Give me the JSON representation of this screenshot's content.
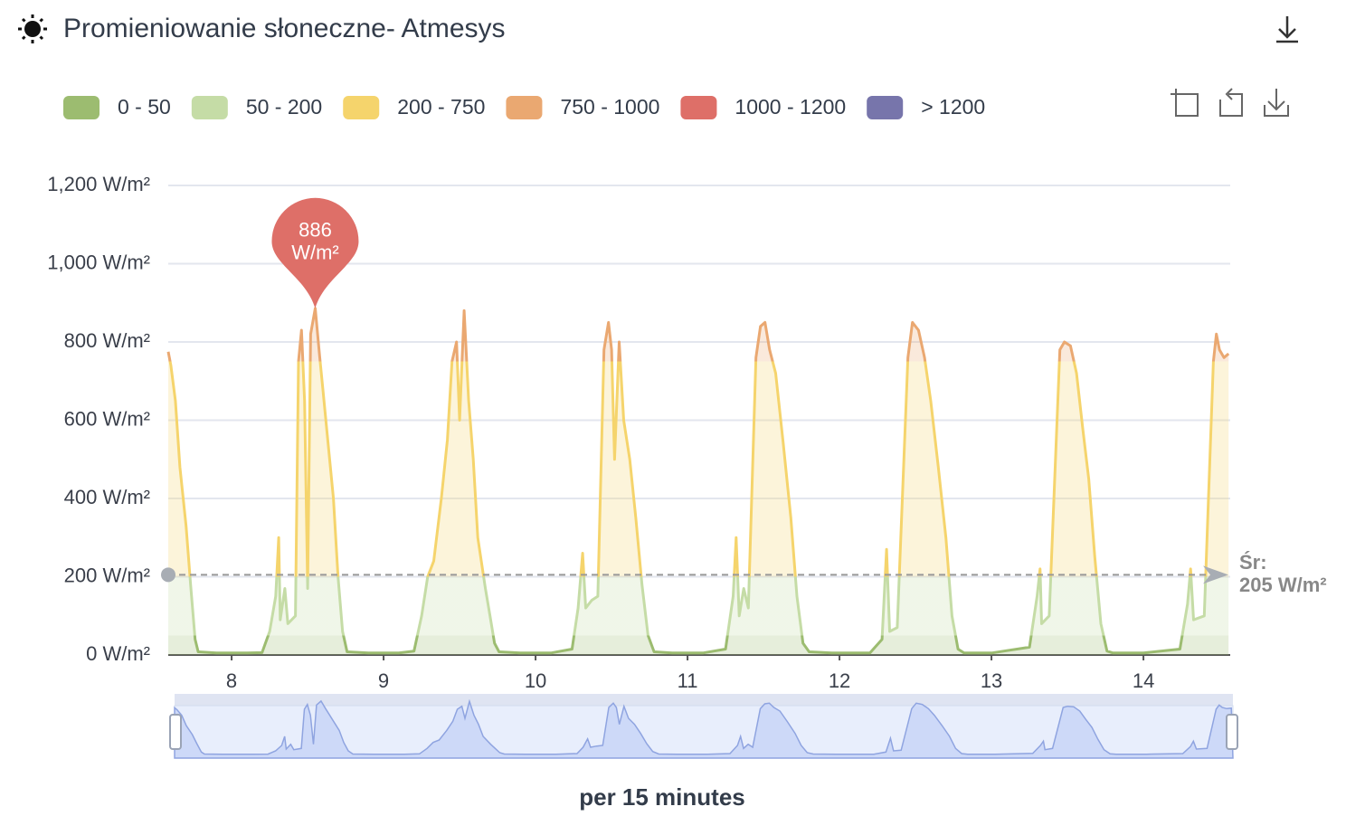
{
  "chart_data": {
    "type": "line",
    "title": "Promieniowanie słoneczne- Atmesys",
    "footer": "per 15 minutes",
    "xlim": [
      7.583,
      14.571
    ],
    "xticks": [
      8,
      9,
      10,
      11,
      12,
      13,
      14
    ],
    "ylim": [
      0,
      1200
    ],
    "yticks": [
      {
        "value": 0,
        "label": "0 W/m²"
      },
      {
        "value": 200,
        "label": "200 W/m²"
      },
      {
        "value": 400,
        "label": "400 W/m²"
      },
      {
        "value": 600,
        "label": "600 W/m²"
      },
      {
        "value": 800,
        "label": "800 W/m²"
      },
      {
        "value": 1000,
        "label": "1,000 W/m²"
      },
      {
        "value": 1200,
        "label": "1,200 W/m²"
      }
    ],
    "grid": true,
    "pieces": [
      {
        "min": 0,
        "max": 50,
        "label": "0 - 50",
        "color": "#9cbc70"
      },
      {
        "min": 50,
        "max": 200,
        "label": "50 - 200",
        "color": "#c5dca6"
      },
      {
        "min": 200,
        "max": 750,
        "label": "200 - 750",
        "color": "#f5d46c"
      },
      {
        "min": 750,
        "max": 1000,
        "label": "750 - 1000",
        "color": "#eaa871"
      },
      {
        "min": 1000,
        "max": 1200,
        "label": "1000 - 1200",
        "color": "#de6f68"
      },
      {
        "min": 1200,
        "label": "> 1200",
        "color": "#7775ab"
      }
    ],
    "marker": {
      "x": 8.55,
      "value": 886,
      "unit": "W/m²",
      "color": "#de6f68"
    },
    "average": {
      "label": "Śr:",
      "value": 205,
      "value_label": "205 W/m²"
    },
    "x": [
      7.583,
      7.6,
      7.63,
      7.66,
      7.7,
      7.73,
      7.76,
      7.78,
      7.9,
      8.1,
      8.2,
      8.25,
      8.29,
      8.31,
      8.32,
      8.35,
      8.37,
      8.42,
      8.44,
      8.46,
      8.48,
      8.5,
      8.52,
      8.55,
      8.58,
      8.6,
      8.63,
      8.67,
      8.7,
      8.73,
      8.76,
      8.9,
      9.1,
      9.2,
      9.25,
      9.29,
      9.33,
      9.38,
      9.42,
      9.45,
      9.48,
      9.5,
      9.53,
      9.56,
      9.59,
      9.62,
      9.67,
      9.7,
      9.73,
      9.76,
      9.9,
      10.1,
      10.24,
      10.28,
      10.31,
      10.33,
      10.37,
      10.41,
      10.45,
      10.48,
      10.5,
      10.52,
      10.55,
      10.58,
      10.62,
      10.66,
      10.7,
      10.74,
      10.78,
      10.9,
      11.1,
      11.25,
      11.3,
      11.32,
      11.34,
      11.37,
      11.4,
      11.45,
      11.48,
      11.51,
      11.54,
      11.58,
      11.63,
      11.68,
      11.72,
      11.76,
      11.8,
      11.95,
      12.2,
      12.28,
      12.31,
      12.33,
      12.38,
      12.45,
      12.48,
      12.52,
      12.56,
      12.6,
      12.65,
      12.7,
      12.74,
      12.78,
      12.82,
      13.0,
      13.25,
      13.3,
      13.32,
      13.33,
      13.38,
      13.45,
      13.48,
      13.52,
      13.56,
      13.6,
      13.64,
      13.68,
      13.72,
      13.76,
      13.8,
      14.0,
      14.24,
      14.29,
      14.31,
      14.33,
      14.4,
      14.46,
      14.48,
      14.5,
      14.53,
      14.56
    ],
    "values": [
      775,
      740,
      650,
      480,
      330,
      180,
      40,
      8,
      5,
      5,
      6,
      60,
      150,
      300,
      90,
      170,
      80,
      100,
      750,
      830,
      650,
      170,
      820,
      886,
      760,
      680,
      560,
      400,
      200,
      60,
      8,
      5,
      5,
      10,
      100,
      200,
      240,
      400,
      550,
      750,
      800,
      600,
      880,
      650,
      500,
      300,
      170,
      100,
      30,
      8,
      5,
      5,
      15,
      120,
      260,
      120,
      140,
      150,
      780,
      850,
      780,
      500,
      800,
      600,
      500,
      350,
      180,
      50,
      8,
      5,
      5,
      15,
      150,
      300,
      100,
      170,
      120,
      760,
      840,
      850,
      780,
      720,
      540,
      350,
      150,
      30,
      8,
      5,
      5,
      40,
      270,
      60,
      70,
      760,
      850,
      830,
      760,
      650,
      480,
      300,
      100,
      15,
      5,
      5,
      20,
      150,
      220,
      80,
      100,
      780,
      800,
      790,
      720,
      580,
      450,
      250,
      80,
      10,
      5,
      5,
      15,
      130,
      220,
      90,
      100,
      750,
      820,
      780,
      760,
      770
    ]
  }
}
